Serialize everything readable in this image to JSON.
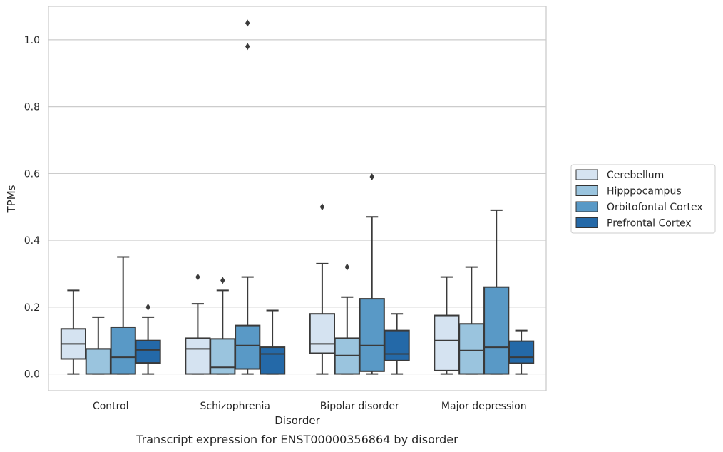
{
  "chart_data": {
    "type": "box",
    "title": "",
    "caption": "Transcript expression for ENST00000356864 by disorder",
    "xlabel": "Disorder",
    "ylabel": "TPMs",
    "ylim": [
      -0.05,
      1.1
    ],
    "yticks": [
      "0.0",
      "0.2",
      "0.4",
      "0.6",
      "0.8",
      "1.0"
    ],
    "grid": "horizontal",
    "legend_position": "right",
    "categories": [
      "Control",
      "Schizophrenia",
      "Bipolar disorder",
      "Major depression"
    ],
    "series": [
      {
        "name": "Cerebellum",
        "color": "#d5e3f1",
        "boxes": [
          {
            "whisker_low": 0.0,
            "q1": 0.045,
            "median": 0.09,
            "q3": 0.135,
            "whisker_high": 0.25,
            "outliers": []
          },
          {
            "whisker_low": 0.0,
            "q1": 0.0,
            "median": 0.075,
            "q3": 0.107,
            "whisker_high": 0.21,
            "outliers": [
              0.29
            ]
          },
          {
            "whisker_low": 0.0,
            "q1": 0.062,
            "median": 0.09,
            "q3": 0.18,
            "whisker_high": 0.33,
            "outliers": [
              0.5
            ]
          },
          {
            "whisker_low": 0.0,
            "q1": 0.01,
            "median": 0.1,
            "q3": 0.175,
            "whisker_high": 0.29,
            "outliers": []
          }
        ]
      },
      {
        "name": "Hipppocampus",
        "color": "#9ac4de",
        "boxes": [
          {
            "whisker_low": 0.0,
            "q1": 0.0,
            "median": 0.075,
            "q3": 0.075,
            "whisker_high": 0.17,
            "outliers": []
          },
          {
            "whisker_low": 0.0,
            "q1": 0.0,
            "median": 0.02,
            "q3": 0.105,
            "whisker_high": 0.25,
            "outliers": [
              0.28
            ]
          },
          {
            "whisker_low": 0.0,
            "q1": 0.0,
            "median": 0.055,
            "q3": 0.107,
            "whisker_high": 0.23,
            "outliers": [
              0.32
            ]
          },
          {
            "whisker_low": 0.0,
            "q1": 0.0,
            "median": 0.07,
            "q3": 0.15,
            "whisker_high": 0.32,
            "outliers": []
          }
        ]
      },
      {
        "name": "Orbitofontal Cortex",
        "color": "#5999c6",
        "boxes": [
          {
            "whisker_low": 0.0,
            "q1": 0.0,
            "median": 0.05,
            "q3": 0.14,
            "whisker_high": 0.35,
            "outliers": []
          },
          {
            "whisker_low": 0.0,
            "q1": 0.015,
            "median": 0.085,
            "q3": 0.145,
            "whisker_high": 0.29,
            "outliers": [
              0.98,
              1.05
            ]
          },
          {
            "whisker_low": 0.0,
            "q1": 0.008,
            "median": 0.085,
            "q3": 0.225,
            "whisker_high": 0.47,
            "outliers": [
              0.59
            ]
          },
          {
            "whisker_low": 0.0,
            "q1": 0.0,
            "median": 0.08,
            "q3": 0.26,
            "whisker_high": 0.49,
            "outliers": []
          }
        ]
      },
      {
        "name": "Prefrontal Cortex",
        "color": "#2469a8",
        "boxes": [
          {
            "whisker_low": 0.0,
            "q1": 0.033,
            "median": 0.072,
            "q3": 0.1,
            "whisker_high": 0.17,
            "outliers": [
              0.2
            ]
          },
          {
            "whisker_low": 0.0,
            "q1": 0.0,
            "median": 0.06,
            "q3": 0.08,
            "whisker_high": 0.19,
            "outliers": []
          },
          {
            "whisker_low": 0.0,
            "q1": 0.04,
            "median": 0.06,
            "q3": 0.13,
            "whisker_high": 0.18,
            "outliers": []
          },
          {
            "whisker_low": 0.0,
            "q1": 0.032,
            "median": 0.05,
            "q3": 0.098,
            "whisker_high": 0.13,
            "outliers": []
          }
        ]
      }
    ]
  }
}
